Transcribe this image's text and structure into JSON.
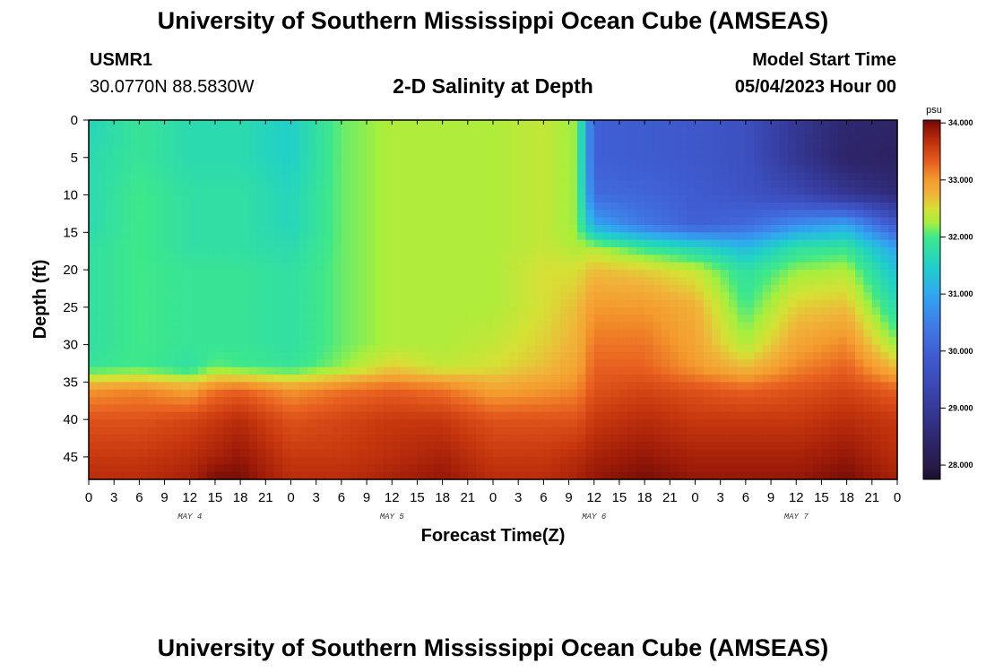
{
  "header": {
    "title": "University of Southern Mississippi Ocean Cube (AMSEAS)",
    "station": "USMR1",
    "coords": "30.0770N  88.5830W",
    "plot_title": "2-D Salinity at Depth",
    "model_start_label": "Model Start Time",
    "model_start_value": "05/04/2023 Hour 00"
  },
  "footer": {
    "title": "University of Southern Mississippi Ocean Cube (AMSEAS)"
  },
  "chart_data": {
    "type": "heatmap",
    "title": "2-D Salinity at Depth",
    "xlabel": "Forecast Time(Z)",
    "ylabel": "Depth (ft)",
    "x_unit": "hours since 05/04/2023 00Z",
    "xlim": [
      0,
      96
    ],
    "ylim": [
      0,
      48
    ],
    "y_inverted": true,
    "yticks": [
      0,
      5,
      10,
      15,
      20,
      25,
      30,
      35,
      40,
      45
    ],
    "xtick_labels": [
      "0",
      "3",
      "6",
      "9",
      "12",
      "15",
      "18",
      "21",
      "0",
      "3",
      "6",
      "9",
      "12",
      "15",
      "18",
      "21",
      "0",
      "3",
      "6",
      "9",
      "12",
      "15",
      "18",
      "21",
      "0",
      "3",
      "6",
      "9",
      "12",
      "15",
      "18",
      "21",
      "0"
    ],
    "day_labels": [
      {
        "text": "MAY 4",
        "hour": 12
      },
      {
        "text": "MAY 5",
        "hour": 36
      },
      {
        "text": "MAY 6",
        "hour": 60
      },
      {
        "text": "MAY 7",
        "hour": 84
      }
    ],
    "colorbar": {
      "unit": "psu",
      "min": 27.75,
      "max": 34.05,
      "labels": [
        "34.000",
        "33.000",
        "32.000",
        "31.000",
        "30.000",
        "29.000",
        "28.000"
      ],
      "values": [
        34,
        33,
        32,
        31,
        30,
        29,
        28
      ]
    },
    "x_hours": [
      0,
      6,
      12,
      15,
      18,
      24,
      30,
      36,
      42,
      48,
      54,
      58,
      60,
      66,
      72,
      78,
      84,
      90,
      96
    ],
    "y_depths": [
      0,
      5,
      10,
      14,
      17,
      20,
      25,
      30,
      33,
      36,
      40,
      45,
      48
    ],
    "salinity": [
      [
        31.6,
        31.9,
        31.7,
        31.7,
        31.7,
        31.5,
        32.1,
        32.3,
        32.3,
        32.3,
        32.4,
        32.2,
        30.0,
        29.9,
        29.8,
        29.6,
        28.9,
        28.5,
        28.4
      ],
      [
        31.7,
        31.9,
        31.7,
        31.7,
        31.7,
        31.5,
        32.1,
        32.3,
        32.3,
        32.3,
        32.4,
        32.2,
        30.0,
        29.9,
        29.8,
        29.6,
        28.9,
        28.4,
        28.3
      ],
      [
        31.7,
        32.0,
        31.8,
        31.8,
        31.8,
        31.6,
        32.1,
        32.3,
        32.3,
        32.3,
        32.4,
        32.2,
        30.2,
        30.1,
        29.9,
        29.7,
        29.4,
        28.9,
        28.6
      ],
      [
        31.7,
        32.0,
        31.8,
        31.8,
        31.8,
        31.6,
        32.1,
        32.3,
        32.3,
        32.3,
        32.4,
        32.2,
        31.0,
        30.4,
        30.0,
        30.2,
        30.7,
        31.0,
        29.8
      ],
      [
        31.8,
        32.0,
        31.8,
        31.8,
        31.8,
        31.7,
        32.1,
        32.3,
        32.3,
        32.3,
        32.4,
        32.3,
        32.3,
        31.9,
        31.6,
        31.2,
        31.8,
        31.9,
        30.9
      ],
      [
        31.8,
        32.0,
        31.9,
        31.9,
        31.9,
        31.8,
        32.1,
        32.3,
        32.3,
        32.3,
        32.5,
        32.5,
        32.7,
        32.6,
        32.4,
        31.8,
        32.2,
        32.3,
        31.3
      ],
      [
        31.8,
        32.0,
        31.9,
        31.9,
        31.9,
        31.8,
        32.1,
        32.3,
        32.3,
        32.3,
        32.5,
        32.7,
        33.0,
        33.0,
        32.8,
        32.0,
        32.6,
        32.7,
        31.7
      ],
      [
        31.8,
        32.0,
        31.9,
        31.9,
        31.9,
        31.8,
        32.1,
        32.3,
        32.3,
        32.4,
        32.6,
        32.8,
        33.2,
        33.2,
        32.9,
        32.3,
        32.9,
        33.1,
        32.2
      ],
      [
        31.9,
        32.0,
        31.8,
        32.1,
        32.0,
        31.9,
        32.2,
        32.6,
        32.4,
        32.5,
        32.7,
        32.9,
        33.3,
        33.3,
        33.0,
        32.7,
        33.1,
        33.3,
        32.7
      ],
      [
        33.0,
        33.1,
        32.9,
        33.2,
        33.3,
        33.0,
        33.2,
        33.3,
        33.2,
        32.9,
        33.0,
        33.1,
        33.4,
        33.5,
        33.4,
        33.3,
        33.4,
        33.5,
        33.3
      ],
      [
        33.4,
        33.4,
        33.5,
        33.6,
        33.7,
        33.4,
        33.5,
        33.6,
        33.6,
        33.4,
        33.4,
        33.4,
        33.6,
        33.7,
        33.6,
        33.6,
        33.6,
        33.7,
        33.6
      ],
      [
        33.6,
        33.6,
        33.7,
        33.8,
        33.9,
        33.6,
        33.6,
        33.7,
        33.8,
        33.6,
        33.6,
        33.7,
        33.8,
        33.9,
        33.8,
        33.8,
        33.8,
        33.9,
        33.7
      ],
      [
        33.7,
        33.7,
        33.8,
        34.0,
        34.0,
        33.7,
        33.7,
        33.8,
        33.9,
        33.7,
        33.7,
        33.8,
        33.9,
        34.0,
        33.9,
        33.9,
        33.9,
        34.0,
        33.8
      ]
    ]
  },
  "palette": {
    "colormap_stops": [
      {
        "v": 27.75,
        "c": "#1a0f2e"
      },
      {
        "v": 28.0,
        "c": "#2a1a4a"
      },
      {
        "v": 28.5,
        "c": "#2f2870"
      },
      {
        "v": 29.0,
        "c": "#353a9a"
      },
      {
        "v": 29.5,
        "c": "#3c4cba"
      },
      {
        "v": 30.0,
        "c": "#4060d5"
      },
      {
        "v": 30.5,
        "c": "#3f7ee8"
      },
      {
        "v": 31.0,
        "c": "#30a8f0"
      },
      {
        "v": 31.5,
        "c": "#20d0c8"
      },
      {
        "v": 32.0,
        "c": "#3ee88a"
      },
      {
        "v": 32.25,
        "c": "#a6ef3d"
      },
      {
        "v": 32.5,
        "c": "#d6e035"
      },
      {
        "v": 32.75,
        "c": "#f0b43a"
      },
      {
        "v": 33.0,
        "c": "#f49a2e"
      },
      {
        "v": 33.3,
        "c": "#e86020"
      },
      {
        "v": 33.6,
        "c": "#c8380e"
      },
      {
        "v": 33.85,
        "c": "#a01c08"
      },
      {
        "v": 34.05,
        "c": "#6a0a06"
      }
    ]
  }
}
